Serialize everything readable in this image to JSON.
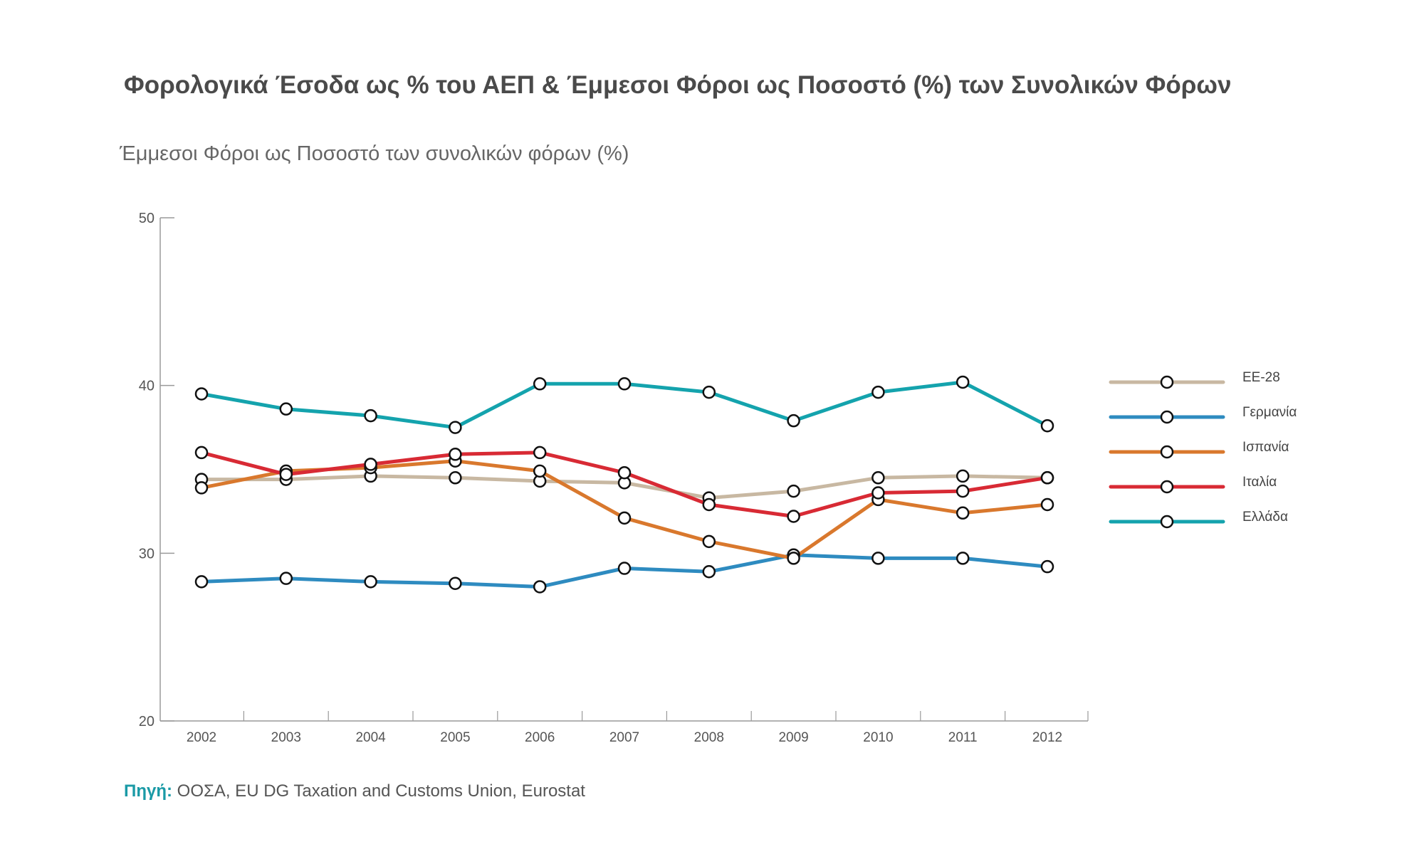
{
  "title": "Φορολογικά Έσοδα ως % του ΑΕΠ & Έμμεσοι Φόροι ως Ποσοστό (%) των Συνολικών Φόρων",
  "source": {
    "label": "Πηγή:",
    "text": " ΟΟΣΑ, EU DG Taxation and Customs Union, Eurostat",
    "label_color": "#1a9aa6"
  },
  "chart_data": {
    "type": "line",
    "title": "",
    "subtitle": "Έμμεσοι Φόροι ως Ποσοστό των συνολικών φόρων (%)",
    "xlabel": "",
    "ylabel": "",
    "categories": [
      "2002",
      "2003",
      "2004",
      "2005",
      "2006",
      "2007",
      "2008",
      "2009",
      "2010",
      "2011",
      "2012"
    ],
    "ylim": [
      20,
      50
    ],
    "yticks": [
      20,
      30,
      40,
      50
    ],
    "grid": false,
    "legend_position": "right",
    "marker": "open-circle",
    "series": [
      {
        "name": "ΕΕ-28",
        "color": "#c8b8a2",
        "values": [
          34.4,
          34.4,
          34.6,
          34.5,
          34.3,
          34.2,
          33.3,
          33.7,
          34.5,
          34.6,
          34.5
        ]
      },
      {
        "name": "Γερμανία",
        "color": "#2e8bc0",
        "values": [
          28.3,
          28.5,
          28.3,
          28.2,
          28.0,
          29.1,
          28.9,
          29.9,
          29.7,
          29.7,
          29.2
        ]
      },
      {
        "name": "Ισπανία",
        "color": "#d9782d",
        "values": [
          33.9,
          34.9,
          35.1,
          35.5,
          34.9,
          32.1,
          30.7,
          29.7,
          33.2,
          32.4,
          32.9
        ]
      },
      {
        "name": "Ιταλία",
        "color": "#d82a34",
        "values": [
          36.0,
          34.7,
          35.3,
          35.9,
          36.0,
          34.8,
          32.9,
          32.2,
          33.6,
          33.7,
          34.5
        ]
      },
      {
        "name": "Ελλάδα",
        "color": "#14a3ad",
        "values": [
          39.5,
          38.6,
          38.2,
          37.5,
          40.1,
          40.1,
          39.6,
          37.9,
          39.6,
          40.2,
          37.6
        ]
      }
    ]
  }
}
